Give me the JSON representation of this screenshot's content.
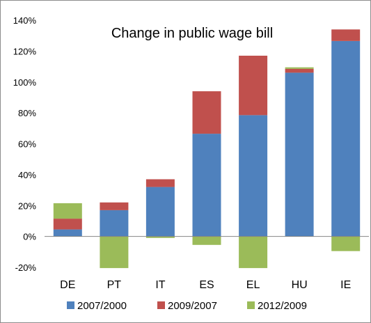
{
  "chart_data": {
    "type": "bar",
    "stacked": true,
    "title": "Change in public wage bill",
    "xlabel": "",
    "ylabel": "",
    "categories": [
      "DE",
      "PT",
      "IT",
      "ES",
      "EL",
      "HU",
      "IE"
    ],
    "ylim": [
      -20,
      140
    ],
    "yticks": [
      -20,
      0,
      20,
      40,
      60,
      80,
      100,
      120,
      140
    ],
    "ytick_labels": [
      "-20%",
      "0%",
      "20%",
      "40%",
      "60%",
      "80%",
      "100%",
      "120%",
      "140%"
    ],
    "grid": false,
    "legend_position": "bottom",
    "series": [
      {
        "name": "2007/2000",
        "color": "#4f81bd",
        "values": [
          4.5,
          17,
          32,
          66.5,
          78.5,
          106,
          126.5
        ]
      },
      {
        "name": "2009/2007",
        "color": "#c0504d",
        "values": [
          7,
          5,
          5,
          27.5,
          38.5,
          2.5,
          7.5
        ]
      },
      {
        "name": "2012/2009",
        "color": "#9bbb59",
        "values": [
          10,
          -20.5,
          -1,
          -5.5,
          -20.5,
          1,
          -9.5
        ]
      }
    ]
  }
}
